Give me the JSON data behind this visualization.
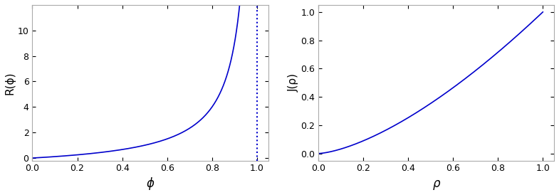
{
  "p": 0.75,
  "q": 0.25,
  "line_color": "#0000CC",
  "dotted_color": "#0000CC",
  "background_color": "#ffffff",
  "left_xlabel": "ϕ",
  "left_ylabel": "R(ϕ)",
  "right_xlabel": "ρ",
  "right_ylabel": "J(ρ)",
  "left_xlim": [
    0.0,
    1.05
  ],
  "left_ylim": [
    -0.2,
    12.0
  ],
  "right_xlim": [
    0.0,
    1.05
  ],
  "right_ylim": [
    -0.05,
    1.05
  ],
  "left_xticks": [
    0.0,
    0.2,
    0.4,
    0.6,
    0.8,
    1.0
  ],
  "left_yticks": [
    0,
    2,
    4,
    6,
    8,
    10
  ],
  "right_xticks": [
    0.0,
    0.2,
    0.4,
    0.6,
    0.8,
    1.0
  ],
  "right_yticks": [
    0.0,
    0.2,
    0.4,
    0.6,
    0.8,
    1.0
  ],
  "vline_x": 1.0,
  "line_width": 1.2,
  "phi_max": 0.932,
  "J_exponent": 1.5
}
